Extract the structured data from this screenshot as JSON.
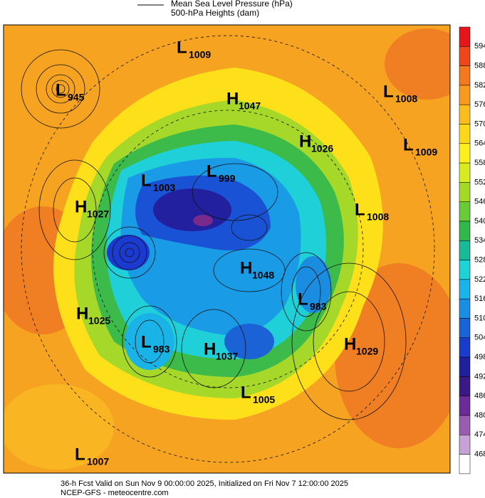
{
  "header": {
    "legend": [
      "Mean Sea Level Pressure (hPa)",
      "500-hPa Heights (dam)"
    ]
  },
  "colorbar": {
    "labels": [
      "594",
      "588",
      "582",
      "576",
      "570",
      "564",
      "558",
      "552",
      "546",
      "540",
      "534",
      "528",
      "522",
      "516",
      "510",
      "504",
      "498",
      "492",
      "486",
      "480",
      "474",
      "468"
    ]
  },
  "centers": [
    {
      "letter": "L",
      "value": "1009"
    },
    {
      "letter": "L",
      "value": "945"
    },
    {
      "letter": "H",
      "value": "1047"
    },
    {
      "letter": "L",
      "value": "1008"
    },
    {
      "letter": "H",
      "value": "1026"
    },
    {
      "letter": "L",
      "value": "1009"
    },
    {
      "letter": "L",
      "value": "1003"
    },
    {
      "letter": "L",
      "value": "999"
    },
    {
      "letter": "L",
      "value": "1008"
    },
    {
      "letter": "H",
      "value": "1027"
    },
    {
      "letter": "H",
      "value": "1048"
    },
    {
      "letter": "L",
      "value": "983"
    },
    {
      "letter": "H",
      "value": "1025"
    },
    {
      "letter": "L",
      "value": "983"
    },
    {
      "letter": "H",
      "value": "1037"
    },
    {
      "letter": "H",
      "value": "1029"
    },
    {
      "letter": "L",
      "value": "1005"
    },
    {
      "letter": "L",
      "value": "1007"
    }
  ],
  "footer": [
    "36-h Fcst Valid on Sun Nov  9 00:00:00 2025, Initialized on Fri Nov  7 12:00:00 2025",
    "NCEP-GFS  - meteocentre.com"
  ]
}
